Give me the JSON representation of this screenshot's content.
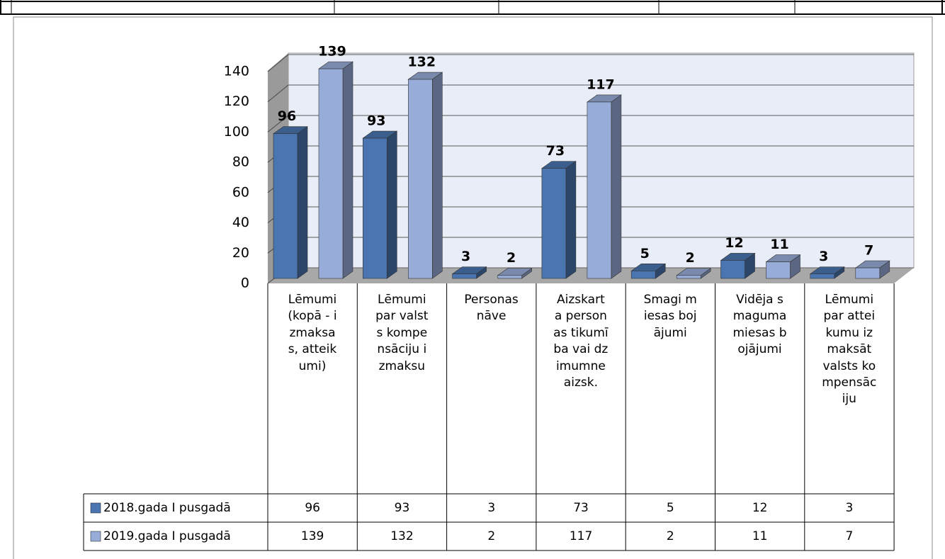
{
  "chart_data": {
    "type": "bar3d",
    "categories": [
      "Lēmumi (kopā - izmaksas, atteikumi)",
      "Lēmumi par valsts kompensāciju izmaksu",
      "Personas nāve",
      "Aizskarta personas tikumība vai dzimumneaizsk.",
      "Smagi miesas bojājumi",
      "Vidēja smaguma miesas bojājumi",
      "Lēmumi par atteikumu izmaksāt valsts kompensāciju"
    ],
    "series": [
      {
        "name": "2018.gada I pusgadā",
        "color": "#4a75b0",
        "values": [
          96,
          93,
          3,
          73,
          5,
          12,
          3
        ]
      },
      {
        "name": "2019.gada I pusgadā",
        "color": "#97acd8",
        "values": [
          139,
          132,
          2,
          117,
          2,
          11,
          7
        ]
      }
    ],
    "ylim": [
      0,
      140
    ],
    "yticks": [
      0,
      20,
      40,
      60,
      80,
      100,
      120,
      140
    ],
    "grid": true,
    "data_table": true
  }
}
